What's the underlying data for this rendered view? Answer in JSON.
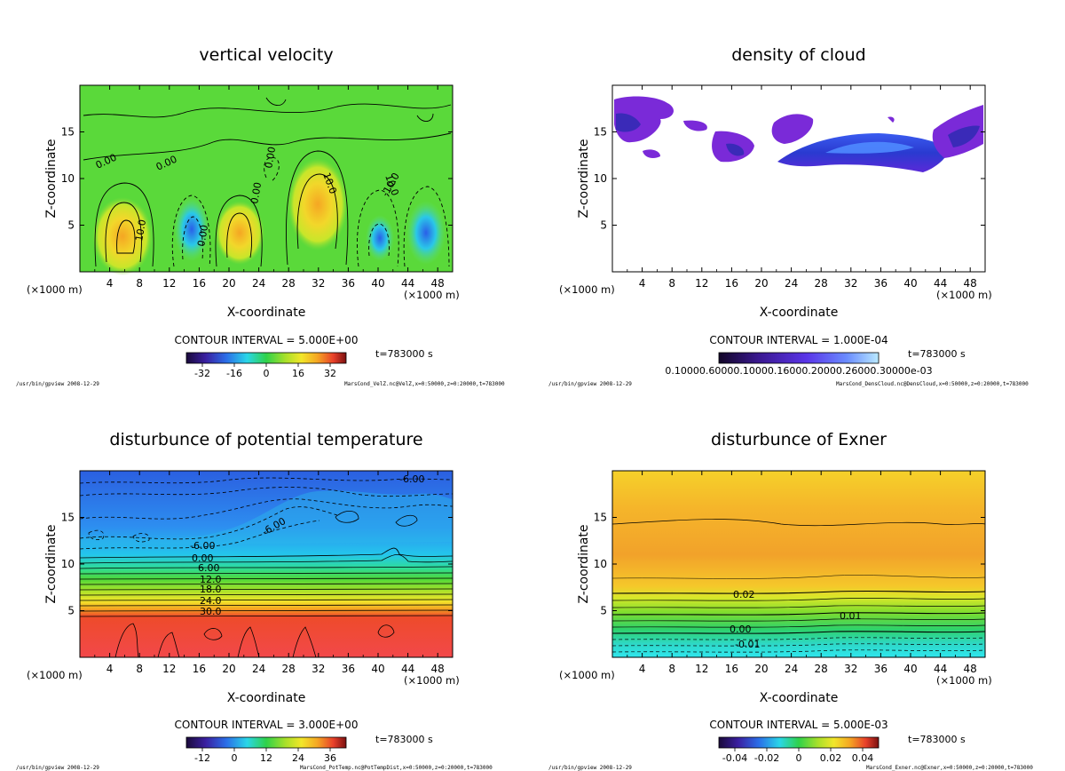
{
  "chart_data": [
    {
      "type": "contour",
      "title": "vertical velocity",
      "xlabel": "X-coordinate",
      "ylabel": "Z-coordinate",
      "xunit_left": "(×1000 m)",
      "xunit_right": "(×1000 m)",
      "xlim": [
        0,
        50
      ],
      "ylim": [
        0,
        20
      ],
      "xticks": [
        4,
        8,
        12,
        16,
        20,
        24,
        28,
        32,
        36,
        40,
        44,
        48
      ],
      "yticks": [
        5,
        10,
        15
      ],
      "contour_interval": "CONTOUR INTERVAL = 5.000E+00",
      "time": "t=783000 s",
      "colorbar_ticks": [
        "-32",
        "-16",
        "0",
        "16",
        "32"
      ],
      "contour_labels": [
        "0.00",
        "0.00",
        "0.00",
        "0.00",
        "10.0",
        "10.0",
        "10.0",
        "-10.0",
        "0.00"
      ],
      "footer_left": "/usr/bin/gpview  2008-12-29",
      "footer_right": "MarsCond_VelZ.nc@VelZ,x=0:50000,z=0:20000,t=783000",
      "colormap": "rainbow"
    },
    {
      "type": "shaded",
      "title": "density of cloud",
      "xlabel": "X-coordinate",
      "ylabel": "Z-coordinate",
      "xunit_left": "(×1000 m)",
      "xunit_right": "(×1000 m)",
      "xlim": [
        0,
        50
      ],
      "ylim": [
        0,
        20
      ],
      "xticks": [
        4,
        8,
        12,
        16,
        20,
        24,
        28,
        32,
        36,
        40,
        44,
        48
      ],
      "yticks": [
        5,
        10,
        15
      ],
      "contour_interval": "CONTOUR INTERVAL = 1.000E-04",
      "time": "t=783000 s",
      "colorbar_ticks": [
        "0.10000.60000.10000.16000.20000.26000.30000e-03"
      ],
      "footer_left": "/usr/bin/gpview  2008-12-29",
      "footer_right": "MarsCond_DensCloud.nc@DensCloud,x=0:50000,z=0:20000,t=783000",
      "colormap": "purple-blue"
    },
    {
      "type": "contour",
      "title": "disturbunce of potential temperature",
      "xlabel": "X-coordinate",
      "ylabel": "Z-coordinate",
      "xunit_left": "(×1000 m)",
      "xunit_right": "(×1000 m)",
      "xlim": [
        0,
        50
      ],
      "ylim": [
        0,
        20
      ],
      "xticks": [
        4,
        8,
        12,
        16,
        20,
        24,
        28,
        32,
        36,
        40,
        44,
        48
      ],
      "yticks": [
        5,
        10,
        15
      ],
      "contour_interval": "CONTOUR INTERVAL = 3.000E+00",
      "time": "t=783000 s",
      "colorbar_ticks": [
        "-12",
        "0",
        "12",
        "24",
        "36"
      ],
      "contour_labels": [
        "-6.00",
        "-6.00",
        "-6.00",
        "0.00",
        "6.00",
        "12.0",
        "18.0",
        "24.0",
        "30.0"
      ],
      "footer_left": "/usr/bin/gpview  2008-12-29",
      "footer_right": "MarsCond_PotTemp.nc@PotTempDist,x=0:50000,z=0:20000,t=783000",
      "colormap": "rainbow"
    },
    {
      "type": "contour",
      "title": "disturbunce of Exner",
      "xlabel": "X-coordinate",
      "ylabel": "Z-coordinate",
      "xunit_left": "(×1000 m)",
      "xunit_right": "(×1000 m)",
      "xlim": [
        0,
        50
      ],
      "ylim": [
        0,
        20
      ],
      "xticks": [
        4,
        8,
        12,
        16,
        20,
        24,
        28,
        32,
        36,
        40,
        44,
        48
      ],
      "yticks": [
        5,
        10,
        15
      ],
      "contour_interval": "CONTOUR INTERVAL = 5.000E-03",
      "time": "t=783000 s",
      "colorbar_ticks": [
        "-0.04",
        "-0.02",
        "0",
        "0.02",
        "0.04"
      ],
      "contour_labels": [
        "0.02",
        "0.01",
        "0.00",
        "-0.01"
      ],
      "footer_left": "/usr/bin/gpview  2008-12-29",
      "footer_right": "MarsCond_Exner.nc@Exner,x=0:50000,z=0:20000,t=783000",
      "colormap": "rainbow"
    }
  ]
}
